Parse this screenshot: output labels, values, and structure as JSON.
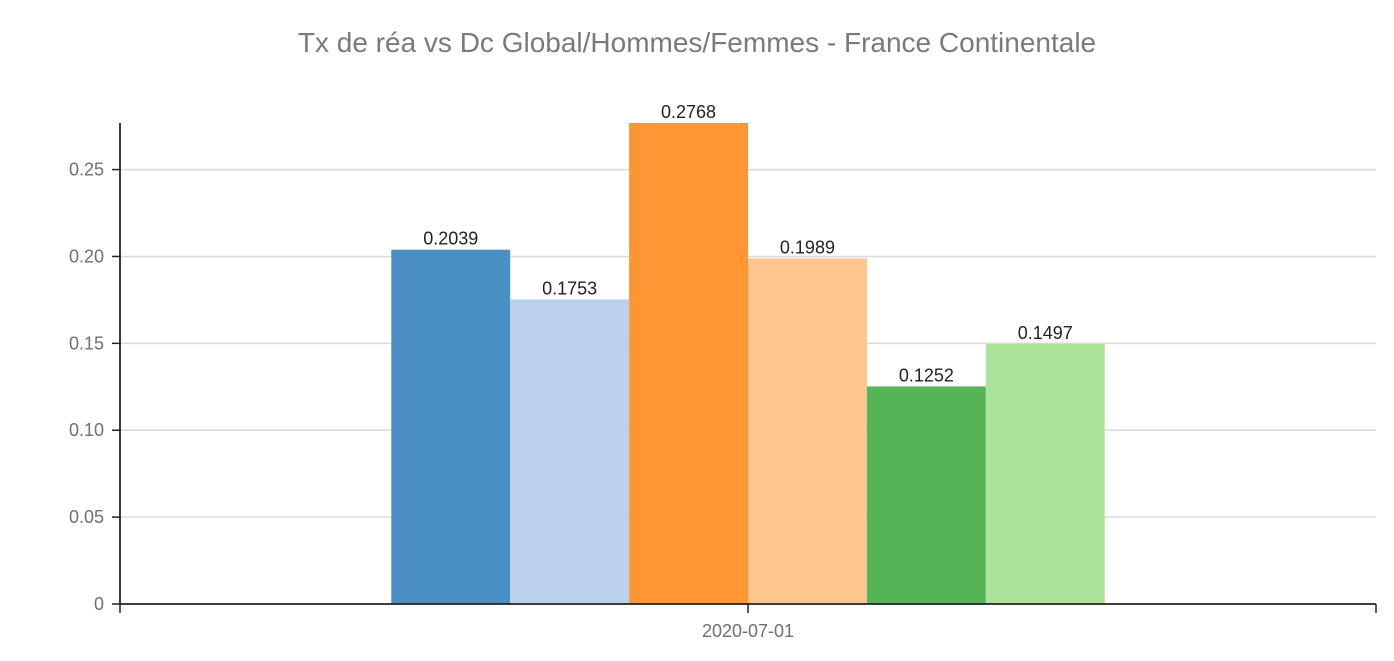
{
  "chart_data": {
    "type": "bar",
    "title": "Tx de réa vs Dc Global/Hommes/Femmes - France Continentale",
    "xlabel": "",
    "ylabel": "",
    "categories": [
      "2020-07-01"
    ],
    "ylim": [
      0,
      0.2768
    ],
    "yticks": [
      0,
      0.05,
      0.1,
      0.15,
      0.2,
      0.25
    ],
    "ytick_labels": [
      "0",
      "0.05",
      "0.10",
      "0.15",
      "0.20",
      "0.25"
    ],
    "grid": true,
    "legend": "none",
    "series": [
      {
        "values": [
          0.2039
        ],
        "label": "0.2039",
        "color": "#4a90c4"
      },
      {
        "values": [
          0.1753
        ],
        "label": "0.1753",
        "color": "#bcd2ec"
      },
      {
        "values": [
          0.2768
        ],
        "label": "0.2768",
        "color": "#ff9633"
      },
      {
        "values": [
          0.1989
        ],
        "label": "0.1989",
        "color": "#ffc58f"
      },
      {
        "values": [
          0.1252
        ],
        "label": "0.1252",
        "color": "#55b455"
      },
      {
        "values": [
          0.1497
        ],
        "label": "0.1497",
        "color": "#ace39b"
      }
    ]
  }
}
